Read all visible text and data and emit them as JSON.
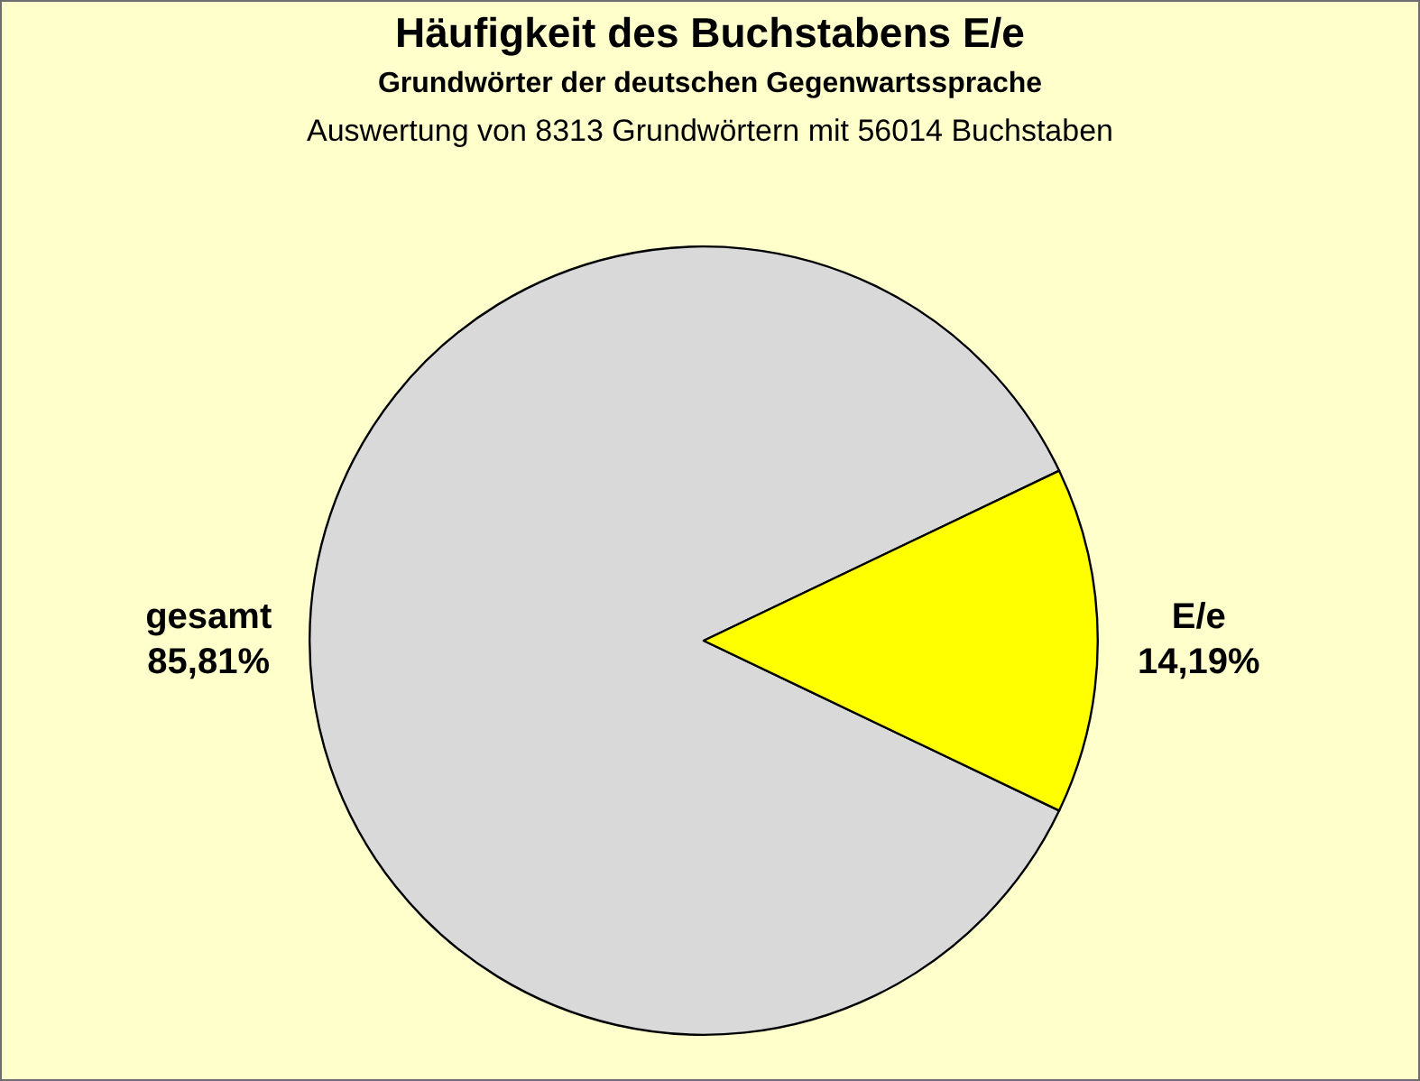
{
  "chart_data": {
    "type": "pie",
    "title": "Häufigkeit des Buchstabens E/e",
    "subtitle": "Grundwörter der deutschen Gegenwartssprache",
    "annotations": [
      "Auswertung von 8313 Grundwörtern mit 56014 Buchstaben"
    ],
    "categories": [
      "gesamt",
      "E/e"
    ],
    "values": [
      85.81,
      14.19
    ],
    "colors": [
      "#d9d9d9",
      "#ffff00"
    ],
    "value_labels": [
      "85,81%",
      "14,19%"
    ]
  }
}
